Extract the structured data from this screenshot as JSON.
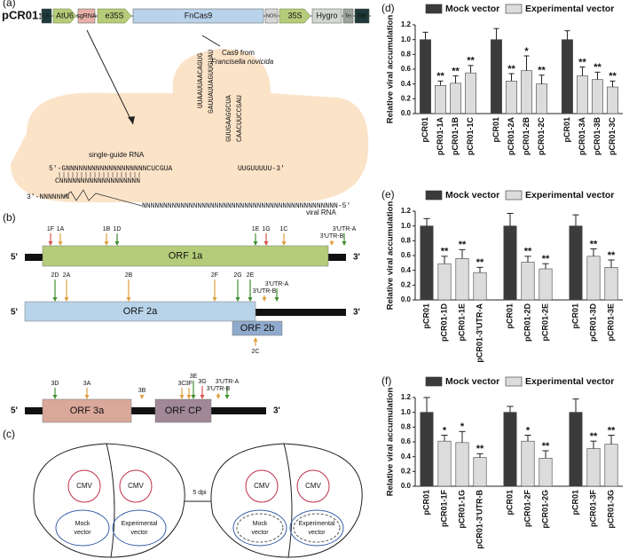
{
  "diagram": {
    "a": {
      "label": "(a)",
      "construct_name": "pCR01:",
      "parts": [
        "LB",
        "AtU6",
        "sgRNA",
        "e35S",
        "FnCas9",
        "NOS",
        "35S",
        "Hygro",
        "Ter",
        "RB"
      ],
      "cas9_note": [
        "Cas9 from",
        "Francisella novicida"
      ],
      "sgrna_label": "single-guide RNA",
      "viral_label": "viral RNA",
      "sequences": [
        "5'-GNNNNNNNNNNNNNNNNNNNCUCGUA",
        "CNNNNNNNNNNNNNNNNNNN",
        "3'-NNNNNNN",
        "NNNNNNNNNNNNNNNNNNNNNNNNNNNNNNNNNNNNNNNNNNNNNN-5'",
        "UUGUUUUU-3'"
      ],
      "hairpin": [
        "UUAAUUAACAGUG",
        "GAUUAUUAGUUGUAU",
        "GUUGAAGGCUA",
        "CAACUUCCGAU"
      ]
    },
    "b": {
      "label": "(b)",
      "genomes": [
        {
          "five": "5'",
          "three": "3'",
          "orfs": [
            "ORF 1a"
          ],
          "markers": [
            "1F",
            "1A",
            "1B",
            "1D",
            "1E",
            "1G",
            "1C",
            "3'UTR-A",
            "3'UTR-B"
          ]
        },
        {
          "five": "5'",
          "three": "3'",
          "orfs": [
            "ORF 2a",
            "ORF 2b"
          ],
          "markers": [
            "2D",
            "2A",
            "2B",
            "2F",
            "2G",
            "2E",
            "3'UTR-A",
            "3'UTR-B",
            "2C"
          ]
        },
        {
          "five": "5'",
          "three": "3'",
          "orfs": [
            "ORF 3a",
            "ORF CP"
          ],
          "markers": [
            "3D",
            "3A",
            "3B",
            "3C",
            "3F",
            "3E",
            "3G",
            "3'UTR-A",
            "3'UTR-B"
          ]
        }
      ]
    },
    "c": {
      "label": "(c)",
      "arrow_label": "5 dpi",
      "leaves": [
        {
          "cmv": [
            "CMV",
            "CMV"
          ],
          "mock": [
            "Mock",
            "vector"
          ],
          "experimental": [
            "Experimental",
            "vector"
          ]
        },
        {
          "cmv": [
            "CMV",
            "CMV"
          ],
          "mock": [
            "Mock",
            "vector"
          ],
          "experimental": [
            "Experimental",
            "vector"
          ]
        }
      ]
    }
  },
  "chart_data": [
    {
      "type": "bar",
      "panel_label": "(d)",
      "y_label": "Relative viral accumulation",
      "legend": "top",
      "categories": [
        "pCR01",
        "pCR01-1A",
        "pCR01-1B",
        "pCR01-1C",
        "pCR01",
        "pCR01-2A",
        "pCR01-2B",
        "pCR01-2C",
        "pCR01",
        "pCR01-3A",
        "pCR01-3B",
        "pCR01-3C"
      ],
      "series": [
        {
          "name": "Mock vector",
          "color": "#3b3b3b",
          "values": [
            1.0,
            null,
            null,
            null,
            1.0,
            null,
            null,
            null,
            1.0,
            null,
            null,
            null
          ],
          "errors": [
            0.1,
            null,
            null,
            null,
            0.15,
            null,
            null,
            null,
            0.12,
            null,
            null,
            null
          ]
        },
        {
          "name": "Experimental vector",
          "color": "#dcdcdc",
          "values": [
            null,
            0.38,
            0.41,
            0.55,
            null,
            0.44,
            0.58,
            0.4,
            null,
            0.51,
            0.46,
            0.36
          ],
          "errors": [
            null,
            0.06,
            0.1,
            0.1,
            null,
            0.1,
            0.2,
            0.12,
            null,
            0.12,
            0.1,
            0.08
          ]
        }
      ],
      "significance": [
        null,
        "**",
        "**",
        "**",
        null,
        "**",
        "*",
        "**",
        null,
        "**",
        "**",
        "**"
      ],
      "ylim": [
        0,
        1.2
      ],
      "yticks": [
        {
          "value": 0,
          "label": "0.0"
        },
        0.2,
        0.4,
        0.6,
        0.8,
        {
          "value": 1,
          "label": "1.0"
        },
        1.2
      ]
    },
    {
      "type": "bar",
      "panel_label": "(e)",
      "y_label": "Relative viral accumulation",
      "legend": "top",
      "categories": [
        "pCR01",
        "pCR01-1D",
        "pCR01-1E",
        "pCR01-3'UTR-A",
        "pCR01",
        "pCR01-2D",
        "pCR01-2E",
        "pCR01",
        "pCR01-3D",
        "pCR01-3E"
      ],
      "series": [
        {
          "name": "Mock vector",
          "color": "#3b3b3b",
          "values": [
            1.0,
            null,
            null,
            null,
            1.0,
            null,
            null,
            1.0,
            null,
            null
          ],
          "errors": [
            0.1,
            null,
            null,
            null,
            0.17,
            null,
            null,
            0.15,
            null,
            null
          ]
        },
        {
          "name": "Experimental vector",
          "color": "#dcdcdc",
          "values": [
            null,
            0.49,
            0.56,
            0.37,
            null,
            0.51,
            0.42,
            null,
            0.59,
            0.44
          ],
          "errors": [
            null,
            0.1,
            0.12,
            0.07,
            null,
            0.08,
            0.07,
            null,
            0.1,
            0.1
          ]
        }
      ],
      "significance": [
        null,
        "**",
        "**",
        "**",
        null,
        "**",
        "**",
        null,
        "**",
        "**"
      ],
      "ylim": [
        0,
        1.2
      ],
      "yticks": [
        {
          "value": 0,
          "label": "0.0"
        },
        0.2,
        0.4,
        0.6,
        0.8,
        {
          "value": 1,
          "label": "1.0"
        },
        1.2
      ]
    },
    {
      "type": "bar",
      "panel_label": "(f)",
      "y_label": "Relative viral accumulation",
      "legend": "top",
      "categories": [
        "pCR01",
        "pCR01-1F",
        "pCR01-1G",
        "pCR01-3'UTR-B",
        "pCR01",
        "pCR01-2F",
        "pCR01-2G",
        "pCR01",
        "pCR01-3F",
        "pCR01-3G"
      ],
      "series": [
        {
          "name": "Mock vector",
          "color": "#3b3b3b",
          "values": [
            1.0,
            null,
            null,
            null,
            1.0,
            null,
            null,
            1.0,
            null,
            null
          ],
          "errors": [
            0.2,
            null,
            null,
            null,
            0.08,
            null,
            null,
            0.18,
            null,
            null
          ]
        },
        {
          "name": "Experimental vector",
          "color": "#dcdcdc",
          "values": [
            null,
            0.61,
            0.59,
            0.39,
            null,
            0.61,
            0.38,
            null,
            0.51,
            0.57
          ],
          "errors": [
            null,
            0.08,
            0.15,
            0.05,
            null,
            0.08,
            0.1,
            null,
            0.1,
            0.12
          ]
        }
      ],
      "significance": [
        null,
        "*",
        "*",
        "**",
        null,
        "*",
        "**",
        null,
        "**",
        "**"
      ],
      "ylim": [
        0,
        1.2
      ],
      "yticks": [
        {
          "value": 0,
          "label": "0.0"
        },
        0.2,
        0.4,
        0.6,
        0.8,
        {
          "value": 1,
          "label": "1.0"
        },
        1.2
      ]
    }
  ]
}
